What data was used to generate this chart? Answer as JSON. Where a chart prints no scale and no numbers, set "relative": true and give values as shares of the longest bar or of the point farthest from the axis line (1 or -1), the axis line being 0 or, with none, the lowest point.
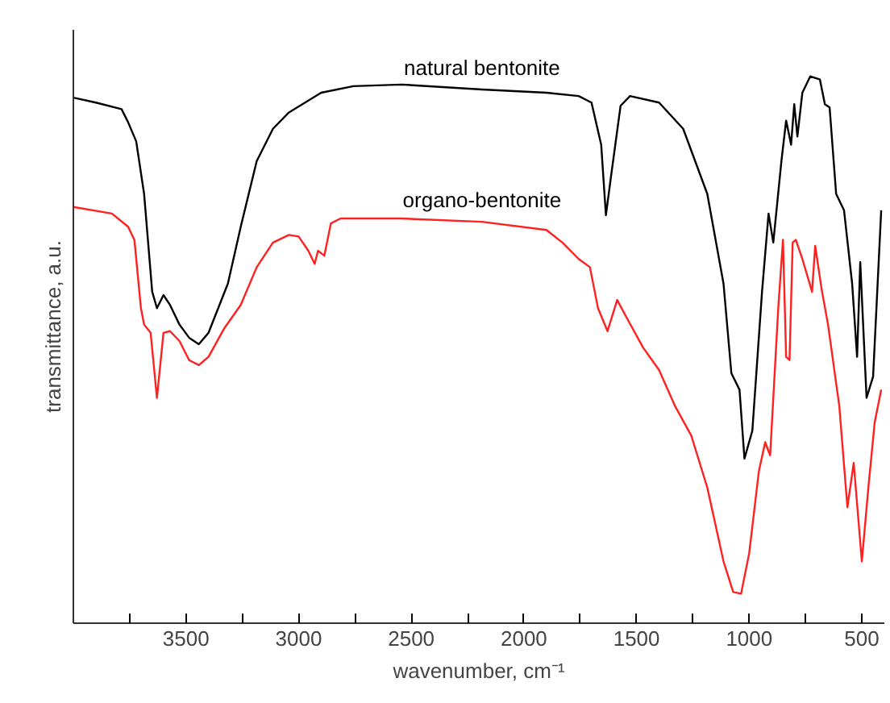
{
  "chart_data": {
    "type": "line",
    "relative": true,
    "xlabel": "wavenumber, cm⁻¹",
    "ylabel": "transmittance, a.u.",
    "xlim": [
      4000,
      400
    ],
    "xticks": [
      {
        "value": 3750,
        "label": null
      },
      3500,
      {
        "value": 3250,
        "label": null
      },
      3000,
      {
        "value": 2750,
        "label": null
      },
      2500,
      {
        "value": 2250,
        "label": null
      },
      2000,
      {
        "value": 1750,
        "label": null
      },
      1500,
      {
        "value": 1250,
        "label": null
      },
      1000,
      {
        "value": 750,
        "label": null
      },
      500
    ],
    "grid": false,
    "legend": false,
    "marker": "none",
    "line_style": "solid",
    "series": [
      {
        "name": "natural bentonite",
        "color": "#000000",
        "x": [
          4000,
          3900,
          3786,
          3757,
          3721,
          3686,
          3650,
          3629,
          3600,
          3571,
          3529,
          3486,
          3443,
          3400,
          3357,
          3314,
          3257,
          3186,
          3114,
          3043,
          2900,
          2757,
          2543,
          2186,
          1900,
          1757,
          1700,
          1657,
          1636,
          1614,
          1571,
          1529,
          1400,
          1293,
          1186,
          1114,
          1079,
          1043,
          1021,
          986,
          943,
          914,
          893,
          857,
          836,
          814,
          800,
          786,
          764,
          729,
          686,
          664,
          643,
          614,
          579,
          543,
          521,
          507,
          479,
          450,
          414
        ],
        "values": [
          0.961,
          0.952,
          0.94,
          0.916,
          0.881,
          0.785,
          0.606,
          0.576,
          0.6,
          0.582,
          0.546,
          0.522,
          0.51,
          0.531,
          0.576,
          0.621,
          0.725,
          0.845,
          0.904,
          0.934,
          0.97,
          0.982,
          0.985,
          0.976,
          0.97,
          0.964,
          0.952,
          0.875,
          0.746,
          0.815,
          0.946,
          0.964,
          0.952,
          0.904,
          0.785,
          0.621,
          0.457,
          0.427,
          0.301,
          0.352,
          0.606,
          0.749,
          0.696,
          0.845,
          0.919,
          0.875,
          0.949,
          0.89,
          0.97,
          1.0,
          0.994,
          0.949,
          0.943,
          0.785,
          0.755,
          0.621,
          0.487,
          0.66,
          0.412,
          0.451,
          0.755
        ]
      },
      {
        "name": "organo-bentonite",
        "color": "#ff2020",
        "x": [
          4000,
          3829,
          3757,
          3729,
          3700,
          3686,
          3657,
          3629,
          3600,
          3571,
          3529,
          3486,
          3443,
          3400,
          3329,
          3257,
          3186,
          3114,
          3043,
          3000,
          2957,
          2929,
          2914,
          2886,
          2857,
          2814,
          2543,
          2186,
          1900,
          1829,
          1757,
          1707,
          1671,
          1629,
          1586,
          1543,
          1471,
          1400,
          1329,
          1257,
          1186,
          1114,
          1071,
          1036,
          1000,
          957,
          929,
          907,
          871,
          850,
          836,
          821,
          807,
          793,
          764,
          721,
          707,
          679,
          650,
          600,
          564,
          536,
          500,
          471,
          443,
          414
        ],
        "values": [
          0.761,
          0.749,
          0.725,
          0.701,
          0.576,
          0.546,
          0.531,
          0.412,
          0.531,
          0.534,
          0.516,
          0.481,
          0.472,
          0.487,
          0.54,
          0.582,
          0.651,
          0.696,
          0.71,
          0.707,
          0.681,
          0.657,
          0.681,
          0.672,
          0.731,
          0.74,
          0.74,
          0.734,
          0.719,
          0.696,
          0.666,
          0.651,
          0.576,
          0.534,
          0.591,
          0.558,
          0.504,
          0.463,
          0.397,
          0.343,
          0.248,
          0.113,
          0.057,
          0.054,
          0.128,
          0.278,
          0.331,
          0.307,
          0.576,
          0.701,
          0.487,
          0.481,
          0.696,
          0.701,
          0.666,
          0.606,
          0.69,
          0.612,
          0.546,
          0.397,
          0.212,
          0.293,
          0.113,
          0.248,
          0.367,
          0.427
        ]
      }
    ]
  }
}
